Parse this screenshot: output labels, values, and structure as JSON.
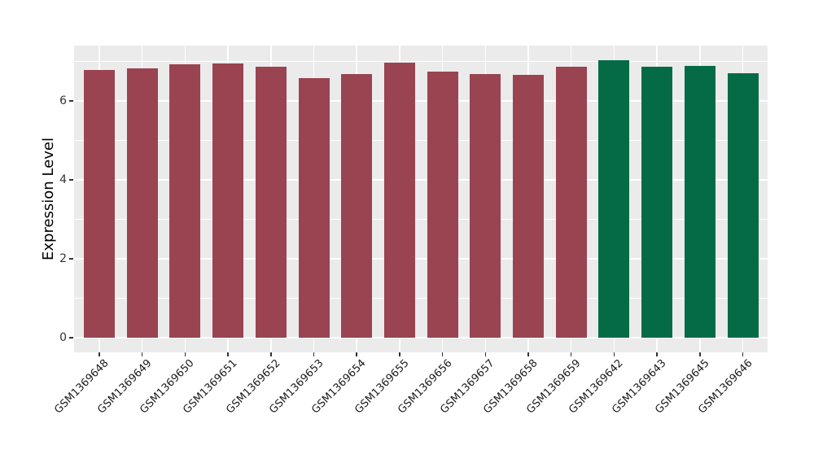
{
  "chart_data": {
    "type": "bar",
    "title": "",
    "xlabel": "",
    "ylabel": "Expression Level",
    "categories": [
      "GSM1369648",
      "GSM1369649",
      "GSM1369650",
      "GSM1369651",
      "GSM1369652",
      "GSM1369653",
      "GSM1369654",
      "GSM1369655",
      "GSM1369656",
      "GSM1369657",
      "GSM1369658",
      "GSM1369659",
      "GSM1369642",
      "GSM1369643",
      "GSM1369645",
      "GSM1369646"
    ],
    "values": [
      6.79,
      6.83,
      6.92,
      6.94,
      6.86,
      6.58,
      6.69,
      6.96,
      6.74,
      6.69,
      6.65,
      6.86,
      7.03,
      6.86,
      6.88,
      6.7
    ],
    "bar_colors": [
      "#9a4451",
      "#9a4451",
      "#9a4451",
      "#9a4451",
      "#9a4451",
      "#9a4451",
      "#9a4451",
      "#9a4451",
      "#9a4451",
      "#9a4451",
      "#9a4451",
      "#9a4451",
      "#056b46",
      "#056b46",
      "#056b46",
      "#056b46"
    ],
    "palette": {
      "group1_red": "#9a4451",
      "group2_green": "#056b46"
    },
    "ylim": [
      0,
      7.4
    ],
    "y_gridline_values": [
      0,
      1,
      2,
      3,
      4,
      5,
      6,
      7
    ],
    "y_tick_values": [
      0,
      2,
      4,
      6
    ],
    "y_tick_labels": [
      "0",
      "2",
      "4",
      "6"
    ],
    "x_tick_rotation_deg": 45,
    "grid": true,
    "legend": false,
    "plot_background": "#ebebeb",
    "grid_color": "#ffffff",
    "tick_color": "#333333",
    "x_label_color": "#1a1a1a"
  }
}
